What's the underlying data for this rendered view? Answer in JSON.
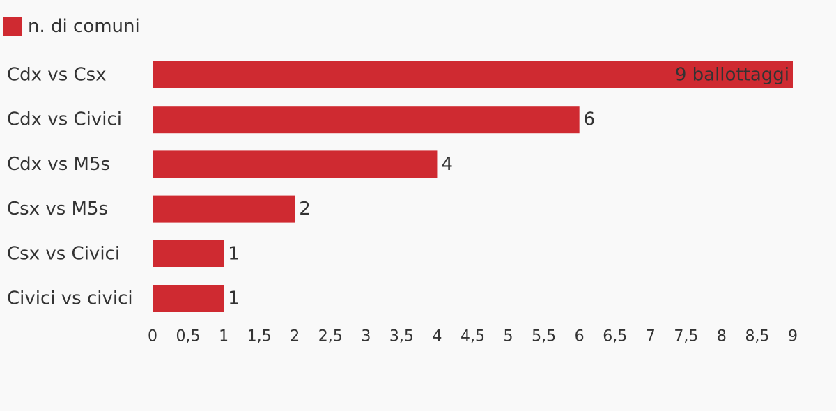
{
  "chart_data": {
    "type": "bar",
    "orientation": "horizontal",
    "legend": {
      "label": "n. di comuni",
      "color": "#cf2a31",
      "placement": "top-left"
    },
    "categories": [
      "Cdx vs Csx",
      "Cdx vs Civici",
      "Cdx vs M5s",
      "Csx vs M5s",
      "Csx vs Civici",
      "Civici vs civici"
    ],
    "series": [
      {
        "name": "n. di comuni",
        "values": [
          9,
          6,
          4,
          2,
          1,
          1
        ]
      }
    ],
    "data_labels": [
      "9 ballottaggi",
      "6",
      "4",
      "2",
      "1",
      "1"
    ],
    "xlim": [
      0,
      9
    ],
    "x_ticks": [
      0,
      0.5,
      1,
      1.5,
      2,
      2.5,
      3,
      3.5,
      4,
      4.5,
      5,
      5.5,
      6,
      6.5,
      7,
      7.5,
      8,
      8.5,
      9
    ],
    "x_tick_labels": [
      "0",
      "0,5",
      "1",
      "1,5",
      "2",
      "2,5",
      "3",
      "3,5",
      "4",
      "4,5",
      "5",
      "5,5",
      "6",
      "6,5",
      "7",
      "7,5",
      "8",
      "8,5",
      "9"
    ],
    "grid": false,
    "bar_color": "#cf2a31"
  }
}
